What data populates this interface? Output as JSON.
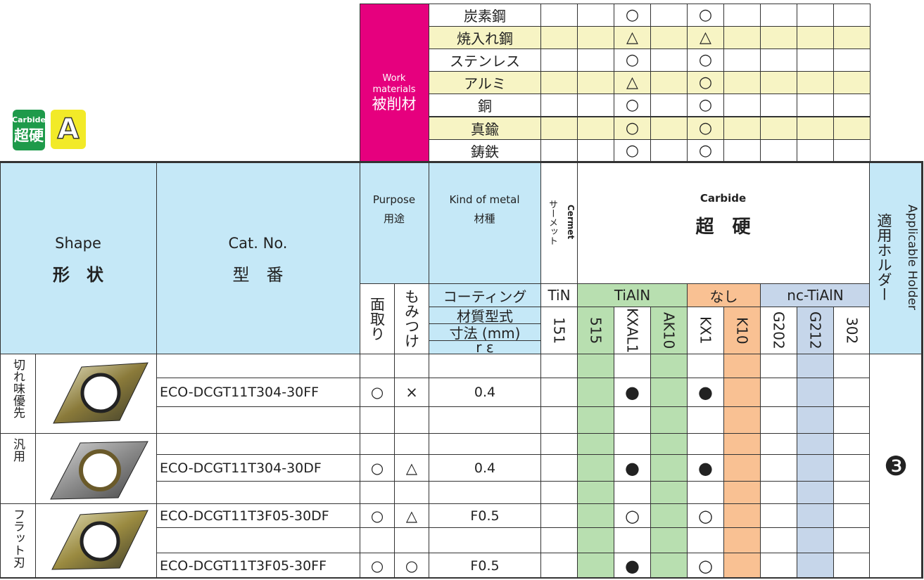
{
  "badges": {
    "carbide_label": "Carbide",
    "carbide_kanji": "超硬",
    "grade": "A"
  },
  "work_materials": {
    "label_en": "Work materials",
    "label_ja": "被削材",
    "rows": [
      {
        "name": "炭素鋼",
        "marks": {
          "KXAL1": "○",
          "KX1": "○"
        }
      },
      {
        "name": "焼入れ鋼",
        "marks": {
          "KXAL1": "△",
          "KX1": "△"
        }
      },
      {
        "name": "ステンレス",
        "marks": {
          "KXAL1": "○",
          "KX1": "○"
        }
      },
      {
        "name": "アルミ",
        "marks": {
          "KXAL1": "△",
          "KX1": "○"
        }
      },
      {
        "name": "銅",
        "marks": {
          "KXAL1": "○",
          "KX1": "○"
        }
      },
      {
        "name": "真鍮",
        "marks": {
          "KXAL1": "○",
          "KX1": "○"
        }
      },
      {
        "name": "鋳鉄",
        "marks": {
          "KXAL1": "○",
          "KX1": "○"
        }
      }
    ]
  },
  "header": {
    "shape_en": "Shape",
    "shape_ja": "形　状",
    "cat_en": "Cat. No.",
    "cat_ja": "型　番",
    "purpose_en": "Purpose",
    "purpose_ja": "用途",
    "chamfer": "面取り",
    "spot": "もみつけ",
    "kind_en": "Kind of metal",
    "kind_ja": "材種",
    "coating": "コーティング",
    "grade_type": "材質型式",
    "size": "寸法 (mm)",
    "re": "r ε",
    "cermet_en": "Cermet",
    "cermet_ja": "サーメット",
    "carbide_en": "Carbide",
    "carbide_ja": "超　硬",
    "holder_ja": "適用ホルダー",
    "holder_en": "Applicable Holder"
  },
  "coatings": [
    {
      "name": "TiN",
      "color": "#ffffff",
      "grades": [
        {
          "name": "151",
          "shaded": false
        }
      ]
    },
    {
      "name": "TiAlN",
      "color": "#b8dfb0",
      "grades": [
        {
          "name": "515",
          "shaded": true
        },
        {
          "name": "KXAL1",
          "shaded": false
        },
        {
          "name": "AK10",
          "shaded": true
        }
      ]
    },
    {
      "name": "なし",
      "color": "#f9c193",
      "grades": [
        {
          "name": "KX1",
          "shaded": false
        },
        {
          "name": "K10",
          "shaded": true
        }
      ]
    },
    {
      "name": "nc-TiAlN",
      "color": "#c6d6ea",
      "grades": [
        {
          "name": "G202",
          "shaded": false
        },
        {
          "name": "G212",
          "shaded": true
        },
        {
          "name": "302",
          "shaded": false
        }
      ]
    }
  ],
  "groups": [
    {
      "label": "切れ味優先",
      "rows": [
        {},
        {
          "cat_no": "ECO-DCGT11T304-30FF",
          "chamfer": "○",
          "spot": "×",
          "re": "0.4",
          "marks": {
            "KXAL1": "●",
            "KX1": "●"
          }
        },
        {}
      ]
    },
    {
      "label": "汎用",
      "rows": [
        {},
        {
          "cat_no": "ECO-DCGT11T304-30DF",
          "chamfer": "○",
          "spot": "△",
          "re": "0.4",
          "marks": {
            "KXAL1": "●",
            "KX1": "●"
          }
        },
        {}
      ]
    },
    {
      "label": "フラット刃",
      "rows": [
        {
          "cat_no": "ECO-DCGT11T3F05-30DF",
          "chamfer": "○",
          "spot": "△",
          "re": "F0.5",
          "marks": {
            "KXAL1": "○",
            "KX1": "○"
          }
        },
        {},
        {
          "cat_no": "ECO-DCGT11T3F05-30FF",
          "chamfer": "○",
          "spot": "○",
          "re": "F0.5",
          "marks": {
            "KXAL1": "●",
            "KX1": "○"
          }
        }
      ]
    }
  ],
  "holder": "❸"
}
